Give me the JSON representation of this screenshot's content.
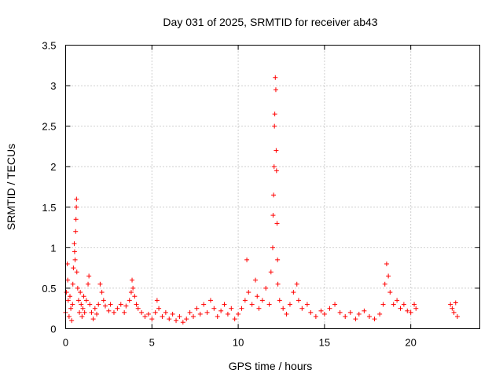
{
  "chart_data": {
    "type": "scatter",
    "title": "Day 031 of 2025, SRMTID for receiver ab43",
    "xlabel": "GPS time / hours",
    "ylabel": "SRMTID / TECUs",
    "xlim": [
      0,
      24
    ],
    "ylim": [
      0,
      3.5
    ],
    "xticks": [
      0,
      5,
      10,
      15,
      20
    ],
    "xtick_labels": [
      "0",
      "5",
      "10",
      "15",
      "20"
    ],
    "yticks": [
      0,
      0.5,
      1,
      1.5,
      2,
      2.5,
      3,
      3.5
    ],
    "ytick_labels": [
      "0",
      "0.5",
      "1",
      "1.5",
      "2",
      "2.5",
      "3",
      "3.5"
    ],
    "grid": true,
    "marker": "+",
    "color": "#ff0000",
    "series": [
      {
        "name": "SRMTID",
        "points": [
          [
            0.0,
            0.2
          ],
          [
            0.05,
            0.45
          ],
          [
            0.1,
            0.8
          ],
          [
            0.12,
            0.6
          ],
          [
            0.15,
            0.35
          ],
          [
            0.2,
            0.15
          ],
          [
            0.25,
            0.4
          ],
          [
            0.3,
            0.25
          ],
          [
            0.35,
            0.1
          ],
          [
            0.4,
            0.3
          ],
          [
            0.42,
            0.55
          ],
          [
            0.45,
            0.75
          ],
          [
            0.5,
            1.05
          ],
          [
            0.52,
            0.95
          ],
          [
            0.55,
            0.85
          ],
          [
            0.58,
            1.2
          ],
          [
            0.6,
            1.35
          ],
          [
            0.62,
            1.5
          ],
          [
            0.63,
            1.6
          ],
          [
            0.65,
            0.7
          ],
          [
            0.7,
            0.5
          ],
          [
            0.75,
            0.35
          ],
          [
            0.8,
            0.2
          ],
          [
            0.85,
            0.45
          ],
          [
            0.9,
            0.3
          ],
          [
            0.95,
            0.15
          ],
          [
            1.0,
            0.25
          ],
          [
            1.05,
            0.4
          ],
          [
            1.1,
            0.2
          ],
          [
            1.2,
            0.35
          ],
          [
            1.3,
            0.55
          ],
          [
            1.35,
            0.65
          ],
          [
            1.4,
            0.3
          ],
          [
            1.5,
            0.2
          ],
          [
            1.6,
            0.12
          ],
          [
            1.7,
            0.25
          ],
          [
            1.8,
            0.18
          ],
          [
            1.9,
            0.3
          ],
          [
            2.0,
            0.55
          ],
          [
            2.1,
            0.45
          ],
          [
            2.2,
            0.35
          ],
          [
            2.3,
            0.28
          ],
          [
            2.5,
            0.22
          ],
          [
            2.6,
            0.3
          ],
          [
            2.8,
            0.2
          ],
          [
            3.0,
            0.25
          ],
          [
            3.2,
            0.3
          ],
          [
            3.4,
            0.2
          ],
          [
            3.5,
            0.28
          ],
          [
            3.7,
            0.35
          ],
          [
            3.8,
            0.45
          ],
          [
            3.85,
            0.6
          ],
          [
            3.9,
            0.5
          ],
          [
            4.0,
            0.4
          ],
          [
            4.1,
            0.3
          ],
          [
            4.2,
            0.25
          ],
          [
            4.4,
            0.2
          ],
          [
            4.6,
            0.15
          ],
          [
            4.8,
            0.18
          ],
          [
            5.0,
            0.12
          ],
          [
            5.2,
            0.2
          ],
          [
            5.3,
            0.35
          ],
          [
            5.4,
            0.25
          ],
          [
            5.6,
            0.15
          ],
          [
            5.8,
            0.2
          ],
          [
            6.0,
            0.12
          ],
          [
            6.2,
            0.18
          ],
          [
            6.4,
            0.1
          ],
          [
            6.6,
            0.15
          ],
          [
            6.8,
            0.08
          ],
          [
            7.0,
            0.12
          ],
          [
            7.2,
            0.2
          ],
          [
            7.4,
            0.15
          ],
          [
            7.6,
            0.25
          ],
          [
            7.8,
            0.18
          ],
          [
            8.0,
            0.3
          ],
          [
            8.2,
            0.2
          ],
          [
            8.4,
            0.35
          ],
          [
            8.6,
            0.25
          ],
          [
            8.8,
            0.15
          ],
          [
            9.0,
            0.22
          ],
          [
            9.2,
            0.3
          ],
          [
            9.4,
            0.18
          ],
          [
            9.6,
            0.25
          ],
          [
            9.8,
            0.12
          ],
          [
            10.0,
            0.18
          ],
          [
            10.2,
            0.25
          ],
          [
            10.4,
            0.35
          ],
          [
            10.5,
            0.85
          ],
          [
            10.6,
            0.45
          ],
          [
            10.8,
            0.3
          ],
          [
            11.0,
            0.6
          ],
          [
            11.1,
            0.4
          ],
          [
            11.2,
            0.25
          ],
          [
            11.4,
            0.35
          ],
          [
            11.6,
            0.5
          ],
          [
            11.8,
            0.3
          ],
          [
            11.9,
            0.7
          ],
          [
            12.0,
            1.0
          ],
          [
            12.02,
            1.4
          ],
          [
            12.05,
            1.65
          ],
          [
            12.08,
            2.0
          ],
          [
            12.1,
            2.5
          ],
          [
            12.12,
            2.65
          ],
          [
            12.15,
            3.1
          ],
          [
            12.18,
            2.95
          ],
          [
            12.2,
            2.2
          ],
          [
            12.22,
            1.95
          ],
          [
            12.25,
            1.3
          ],
          [
            12.28,
            0.85
          ],
          [
            12.3,
            0.55
          ],
          [
            12.4,
            0.35
          ],
          [
            12.6,
            0.25
          ],
          [
            12.8,
            0.18
          ],
          [
            13.0,
            0.3
          ],
          [
            13.2,
            0.45
          ],
          [
            13.4,
            0.55
          ],
          [
            13.5,
            0.35
          ],
          [
            13.7,
            0.25
          ],
          [
            14.0,
            0.3
          ],
          [
            14.2,
            0.2
          ],
          [
            14.5,
            0.15
          ],
          [
            14.8,
            0.22
          ],
          [
            15.0,
            0.18
          ],
          [
            15.3,
            0.25
          ],
          [
            15.6,
            0.3
          ],
          [
            15.9,
            0.2
          ],
          [
            16.2,
            0.15
          ],
          [
            16.5,
            0.2
          ],
          [
            16.8,
            0.12
          ],
          [
            17.0,
            0.18
          ],
          [
            17.3,
            0.22
          ],
          [
            17.6,
            0.15
          ],
          [
            17.9,
            0.12
          ],
          [
            18.2,
            0.18
          ],
          [
            18.4,
            0.3
          ],
          [
            18.5,
            0.55
          ],
          [
            18.6,
            0.8
          ],
          [
            18.7,
            0.65
          ],
          [
            18.8,
            0.45
          ],
          [
            19.0,
            0.3
          ],
          [
            19.2,
            0.35
          ],
          [
            19.4,
            0.25
          ],
          [
            19.6,
            0.3
          ],
          [
            19.8,
            0.22
          ],
          [
            20.0,
            0.2
          ],
          [
            20.2,
            0.3
          ],
          [
            20.3,
            0.25
          ],
          [
            22.3,
            0.3
          ],
          [
            22.4,
            0.25
          ],
          [
            22.5,
            0.2
          ],
          [
            22.6,
            0.32
          ],
          [
            22.7,
            0.15
          ]
        ]
      }
    ]
  }
}
